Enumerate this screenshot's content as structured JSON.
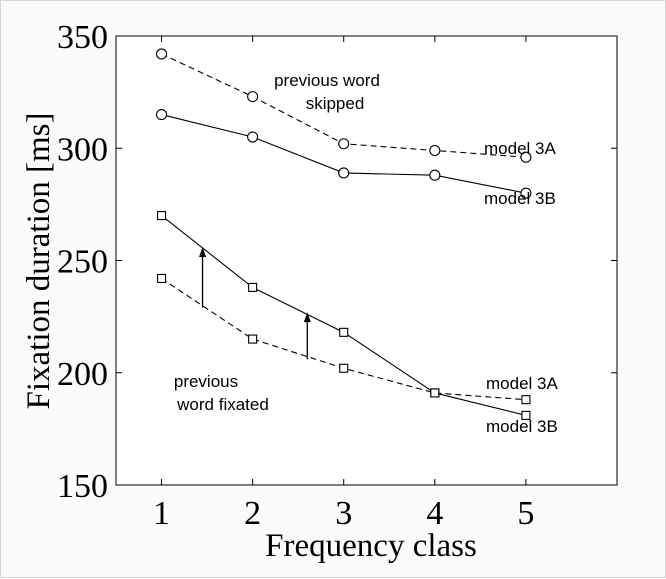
{
  "chart_data": {
    "type": "line",
    "xlabel": "Frequency class",
    "ylabel": "Fixation duration [ms]",
    "xlim": [
      0.5,
      6.0
    ],
    "ylim": [
      150,
      350
    ],
    "xticks": [
      "1",
      "2",
      "3",
      "4",
      "5"
    ],
    "yticks": [
      "150",
      "200",
      "250",
      "300",
      "350"
    ],
    "x": [
      1,
      2,
      3,
      4,
      5
    ],
    "series": [
      {
        "group": "previous word skipped",
        "line_style": "dashed",
        "marker": "circle",
        "values": [
          342,
          323,
          302,
          299,
          296
        ]
      },
      {
        "group": "previous word skipped",
        "line_style": "solid",
        "marker": "circle",
        "values": [
          315,
          305,
          289,
          288,
          280
        ]
      },
      {
        "group": "previous word fixated",
        "line_style": "solid",
        "marker": "square",
        "values": [
          270,
          238,
          218,
          191,
          181
        ]
      },
      {
        "group": "previous word fixated",
        "line_style": "dashed",
        "marker": "square",
        "values": [
          242,
          215,
          202,
          191,
          188
        ]
      }
    ],
    "annotations": {
      "skipped_line1": "previous word",
      "skipped_line2": "skipped",
      "fixated_line1": "previous",
      "fixated_line2": "word fixated",
      "label_skipped_dashed": "model 3A",
      "label_skipped_solid": "model 3B",
      "label_fixated_dashed": "model 3A",
      "label_fixated_solid": "model 3B"
    },
    "arrows": [
      {
        "x": 1.45,
        "from": 229,
        "to": 256
      },
      {
        "x": 2.6,
        "from": 206,
        "to": 227
      }
    ],
    "grid": false,
    "legend": "none"
  }
}
